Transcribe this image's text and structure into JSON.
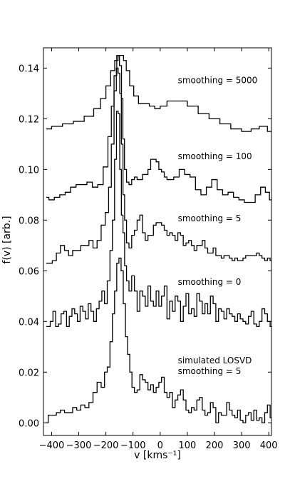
{
  "chart_data": {
    "type": "line",
    "xlabel": "v [kms⁻¹]",
    "ylabel": "f(v) [arb.]",
    "xlim": [
      -430,
      410
    ],
    "ylim": [
      -0.005,
      0.148
    ],
    "x_ticks": [
      -400,
      -300,
      -200,
      -100,
      0,
      100,
      200,
      300,
      400
    ],
    "x_tick_labels": [
      "−400",
      "−300",
      "−200",
      "−100",
      "0",
      "100",
      "200",
      "300",
      "400"
    ],
    "y_ticks": [
      0.0,
      0.02,
      0.04,
      0.06,
      0.08,
      0.1,
      0.12,
      0.14
    ],
    "y_tick_labels": [
      "0.00",
      "0.02",
      "0.04",
      "0.06",
      "0.08",
      "0.10",
      "0.12",
      "0.14"
    ],
    "grid": false,
    "legend": "none",
    "series": [
      {
        "name": "smoothing = 5000",
        "x": [
          -420,
          -380,
          -340,
          -300,
          -260,
          -230,
          -210,
          -190,
          -175,
          -160,
          -150,
          -140,
          -130,
          -120,
          -105,
          -90,
          -70,
          -50,
          -30,
          -10,
          10,
          40,
          80,
          120,
          160,
          200,
          240,
          280,
          320,
          350,
          380,
          410
        ],
        "values": [
          0.116,
          0.117,
          0.118,
          0.119,
          0.121,
          0.124,
          0.128,
          0.133,
          0.139,
          0.143,
          0.145,
          0.145,
          0.143,
          0.139,
          0.133,
          0.129,
          0.126,
          0.126,
          0.125,
          0.124,
          0.125,
          0.127,
          0.127,
          0.125,
          0.122,
          0.12,
          0.118,
          0.116,
          0.115,
          0.116,
          0.117,
          0.115
        ]
      },
      {
        "name": "smoothing = 100",
        "x": [
          -420,
          -400,
          -380,
          -360,
          -340,
          -320,
          -300,
          -280,
          -260,
          -240,
          -220,
          -200,
          -185,
          -175,
          -165,
          -155,
          -145,
          -140,
          -135,
          -128,
          -120,
          -110,
          -100,
          -90,
          -80,
          -70,
          -60,
          -50,
          -40,
          -30,
          -20,
          -10,
          0,
          10,
          20,
          30,
          40,
          60,
          80,
          100,
          120,
          140,
          160,
          180,
          200,
          220,
          240,
          260,
          280,
          300,
          320,
          340,
          360,
          380,
          395,
          410
        ],
        "values": [
          0.089,
          0.088,
          0.089,
          0.09,
          0.091,
          0.093,
          0.094,
          0.094,
          0.095,
          0.093,
          0.094,
          0.101,
          0.113,
          0.125,
          0.137,
          0.145,
          0.141,
          0.128,
          0.112,
          0.1,
          0.095,
          0.094,
          0.096,
          0.097,
          0.096,
          0.096,
          0.098,
          0.098,
          0.1,
          0.104,
          0.104,
          0.103,
          0.1,
          0.099,
          0.097,
          0.096,
          0.096,
          0.097,
          0.1,
          0.098,
          0.097,
          0.092,
          0.09,
          0.093,
          0.096,
          0.092,
          0.09,
          0.091,
          0.089,
          0.088,
          0.087,
          0.087,
          0.09,
          0.093,
          0.091,
          0.088
        ]
      },
      {
        "name": "smoothing = 5",
        "x": [
          -420,
          -405,
          -390,
          -375,
          -360,
          -345,
          -330,
          -315,
          -300,
          -285,
          -270,
          -255,
          -240,
          -225,
          -210,
          -195,
          -185,
          -175,
          -165,
          -158,
          -152,
          -146,
          -140,
          -134,
          -128,
          -120,
          -110,
          -100,
          -90,
          -80,
          -70,
          -60,
          -50,
          -40,
          -30,
          -20,
          -10,
          0,
          10,
          20,
          30,
          40,
          50,
          60,
          70,
          80,
          90,
          100,
          110,
          120,
          130,
          140,
          150,
          160,
          170,
          180,
          190,
          200,
          210,
          220,
          230,
          240,
          250,
          260,
          270,
          280,
          290,
          300,
          310,
          320,
          330,
          340,
          350,
          360,
          370,
          380,
          390,
          400,
          410
        ],
        "values": [
          0.063,
          0.063,
          0.064,
          0.067,
          0.07,
          0.068,
          0.066,
          0.068,
          0.068,
          0.07,
          0.07,
          0.072,
          0.069,
          0.072,
          0.078,
          0.083,
          0.093,
          0.11,
          0.131,
          0.14,
          0.138,
          0.13,
          0.11,
          0.09,
          0.08,
          0.071,
          0.069,
          0.074,
          0.076,
          0.08,
          0.082,
          0.075,
          0.072,
          0.074,
          0.074,
          0.078,
          0.079,
          0.079,
          0.078,
          0.076,
          0.074,
          0.075,
          0.074,
          0.072,
          0.075,
          0.074,
          0.07,
          0.071,
          0.072,
          0.07,
          0.068,
          0.07,
          0.07,
          0.072,
          0.069,
          0.067,
          0.067,
          0.069,
          0.066,
          0.066,
          0.065,
          0.066,
          0.066,
          0.065,
          0.064,
          0.065,
          0.064,
          0.064,
          0.065,
          0.066,
          0.066,
          0.066,
          0.066,
          0.067,
          0.066,
          0.065,
          0.064,
          0.065,
          0.064
        ]
      },
      {
        "name": "smoothing = 0",
        "x": [
          -420,
          -410,
          -400,
          -390,
          -380,
          -370,
          -360,
          -350,
          -340,
          -330,
          -320,
          -310,
          -300,
          -290,
          -280,
          -270,
          -260,
          -250,
          -240,
          -230,
          -220,
          -210,
          -200,
          -190,
          -180,
          -172,
          -164,
          -158,
          -152,
          -146,
          -140,
          -134,
          -128,
          -120,
          -110,
          -100,
          -90,
          -80,
          -70,
          -60,
          -50,
          -40,
          -30,
          -20,
          -10,
          0,
          10,
          20,
          30,
          40,
          50,
          60,
          70,
          80,
          90,
          100,
          110,
          120,
          130,
          140,
          150,
          160,
          170,
          180,
          190,
          200,
          210,
          220,
          230,
          240,
          250,
          260,
          270,
          280,
          290,
          300,
          310,
          320,
          330,
          340,
          350,
          360,
          370,
          380,
          390,
          400,
          410
        ],
        "values": [
          0.038,
          0.038,
          0.04,
          0.044,
          0.038,
          0.039,
          0.043,
          0.044,
          0.038,
          0.042,
          0.045,
          0.043,
          0.04,
          0.046,
          0.044,
          0.041,
          0.047,
          0.044,
          0.04,
          0.045,
          0.048,
          0.052,
          0.047,
          0.056,
          0.068,
          0.08,
          0.104,
          0.123,
          0.122,
          0.1,
          0.082,
          0.075,
          0.062,
          0.056,
          0.052,
          0.058,
          0.052,
          0.044,
          0.052,
          0.05,
          0.046,
          0.054,
          0.048,
          0.046,
          0.052,
          0.046,
          0.05,
          0.054,
          0.041,
          0.048,
          0.044,
          0.05,
          0.048,
          0.04,
          0.046,
          0.051,
          0.043,
          0.045,
          0.042,
          0.051,
          0.048,
          0.043,
          0.047,
          0.043,
          0.05,
          0.047,
          0.04,
          0.045,
          0.044,
          0.041,
          0.045,
          0.043,
          0.042,
          0.04,
          0.043,
          0.041,
          0.04,
          0.039,
          0.042,
          0.044,
          0.039,
          0.038,
          0.04,
          0.045,
          0.043,
          0.04,
          0.038
        ]
      },
      {
        "name": "simulated LOSVD smoothing = 5",
        "x": [
          -420,
          -405,
          -390,
          -375,
          -360,
          -345,
          -330,
          -315,
          -300,
          -285,
          -270,
          -255,
          -240,
          -225,
          -210,
          -200,
          -190,
          -180,
          -172,
          -164,
          -156,
          -148,
          -140,
          -132,
          -124,
          -116,
          -108,
          -100,
          -90,
          -80,
          -70,
          -60,
          -50,
          -40,
          -30,
          -20,
          -10,
          0,
          10,
          20,
          30,
          40,
          50,
          60,
          70,
          80,
          90,
          100,
          110,
          120,
          130,
          140,
          150,
          160,
          170,
          180,
          190,
          200,
          210,
          220,
          230,
          240,
          250,
          260,
          270,
          280,
          290,
          300,
          310,
          320,
          330,
          340,
          350,
          360,
          370,
          380,
          390,
          400,
          410
        ],
        "values": [
          0.0,
          0.003,
          0.003,
          0.004,
          0.005,
          0.004,
          0.004,
          0.006,
          0.005,
          0.007,
          0.006,
          0.008,
          0.012,
          0.016,
          0.014,
          0.02,
          0.022,
          0.032,
          0.043,
          0.052,
          0.063,
          0.065,
          0.06,
          0.047,
          0.034,
          0.027,
          0.02,
          0.014,
          0.012,
          0.013,
          0.019,
          0.017,
          0.016,
          0.013,
          0.015,
          0.012,
          0.014,
          0.016,
          0.018,
          0.012,
          0.01,
          0.012,
          0.006,
          0.009,
          0.011,
          0.013,
          0.009,
          0.005,
          0.004,
          0.006,
          0.005,
          0.009,
          0.01,
          0.005,
          0.003,
          0.004,
          0.008,
          0.006,
          0.0,
          0.004,
          0.003,
          0.003,
          0.008,
          0.005,
          0.003,
          0.002,
          0.005,
          0.001,
          0.0,
          0.003,
          0.004,
          0.001,
          0.005,
          0.001,
          0.002,
          0.0,
          0.004,
          0.007,
          0.002
        ]
      }
    ],
    "annotations": [
      {
        "lines": [
          "smoothing = 5000"
        ],
        "x": 65,
        "y": 0.134
      },
      {
        "lines": [
          "smoothing = 100"
        ],
        "x": 65,
        "y": 0.104
      },
      {
        "lines": [
          "smoothing = 5"
        ],
        "x": 65,
        "y": 0.0795
      },
      {
        "lines": [
          "smoothing = 0"
        ],
        "x": 65,
        "y": 0.0545
      },
      {
        "lines": [
          "simulated LOSVD",
          "smoothing = 5"
        ],
        "x": 65,
        "y": 0.0235
      }
    ]
  }
}
